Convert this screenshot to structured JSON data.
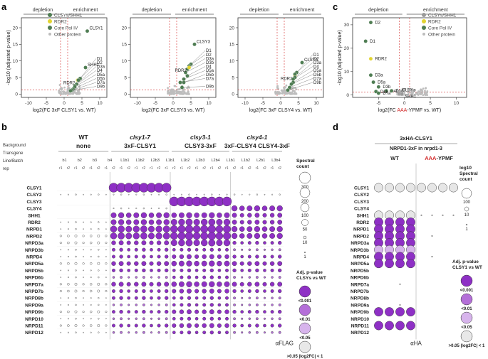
{
  "panel_labels": {
    "a": "a",
    "b": "b",
    "c": "c",
    "d": "d"
  },
  "colors": {
    "purple": "#8e30c5",
    "mid_purple": "#b46fd8",
    "light_purple": "#d7b4ec",
    "green": "#4f7d53",
    "yellow": "#e2d430",
    "grey": "#bdbdbd",
    "red": "#d22a2a"
  },
  "volcano_common": {
    "depletion": "depletion",
    "enrichment": "enrichment",
    "ylabel": "-log10 (adjusted p-value)"
  },
  "legend_a": [
    "CLSYs/SHH1",
    "RDR2",
    "Core Pol IV",
    "Other protein"
  ],
  "legend_c": [
    "CLSYs/SHH1",
    "RDR2",
    "Core Pol IV",
    "Other protein"
  ],
  "chart_data": [
    {
      "type": "scatter",
      "title": "",
      "xlabel": "log2(FC 3xF CLSY1 vs. WT)",
      "xlim": [
        -12,
        12
      ],
      "ylim": [
        -1,
        23
      ],
      "xticks": [
        "-10",
        "-5",
        "0",
        "5",
        "10"
      ],
      "yticks": [
        "0",
        "5",
        "10",
        "15",
        "20"
      ],
      "points": [
        {
          "label": "CLSY1",
          "x": 6.5,
          "y": 19.0,
          "cls": "clsy"
        },
        {
          "label": "SHH1",
          "x": 6.0,
          "y": 8.0,
          "cls": "clsy"
        },
        {
          "label": "RDR2",
          "x": 3.8,
          "y": 4.2,
          "cls": "rdr2"
        },
        {
          "label": "D1",
          "x": 4.5,
          "y": 4.7,
          "cls": "pol"
        },
        {
          "label": "D2",
          "x": 4.0,
          "y": 4.2,
          "cls": "pol"
        },
        {
          "label": "D3a",
          "x": 3.5,
          "y": 3.0,
          "cls": "pol"
        },
        {
          "label": "D4",
          "x": 3.0,
          "y": 2.5,
          "cls": "pol"
        },
        {
          "label": "D5a",
          "x": 3.0,
          "y": 2.2,
          "cls": "pol"
        },
        {
          "label": "D5b",
          "x": 2.5,
          "y": 1.5,
          "cls": "pol"
        },
        {
          "label": "D7a",
          "x": 2.2,
          "y": 1.2,
          "cls": "pol"
        },
        {
          "label": "D9b",
          "x": 1.8,
          "y": 1.0,
          "cls": "pol"
        }
      ]
    },
    {
      "type": "scatter",
      "title": "",
      "xlabel": "log2(FC 3xF CLSY3 vs. WT)",
      "xlim": [
        -12,
        12
      ],
      "ylim": [
        -1,
        23
      ],
      "xticks": [
        "-10",
        "-5",
        "0",
        "5",
        "10"
      ],
      "yticks": [
        "0",
        "5",
        "10",
        "15",
        "20"
      ],
      "points": [
        {
          "label": "CLSY3",
          "x": 6.0,
          "y": 15.0,
          "cls": "clsy"
        },
        {
          "label": "D1",
          "x": 5.0,
          "y": 9.0,
          "cls": "pol"
        },
        {
          "label": "D2",
          "x": 4.5,
          "y": 8.5,
          "cls": "pol"
        },
        {
          "label": "D3a",
          "x": 4.0,
          "y": 7.5,
          "cls": "pol"
        },
        {
          "label": "D3b",
          "x": 3.5,
          "y": 6.5,
          "cls": "pol"
        },
        {
          "label": "D4",
          "x": 4.0,
          "y": 5.5,
          "cls": "pol"
        },
        {
          "label": "D5a",
          "x": 3.0,
          "y": 4.5,
          "cls": "pol"
        },
        {
          "label": "D5b",
          "x": 3.0,
          "y": 3.5,
          "cls": "pol"
        },
        {
          "label": "D7a",
          "x": 2.0,
          "y": 3.5,
          "cls": "pol"
        },
        {
          "label": "RDR2",
          "x": 4.5,
          "y": 8.0,
          "cls": "rdr2"
        },
        {
          "label": "D9b",
          "x": 2.5,
          "y": 2.0,
          "cls": "pol"
        }
      ]
    },
    {
      "type": "scatter",
      "title": "",
      "xlabel": "log2(FC 3xF CLSY4 vs. WT)",
      "xlim": [
        -12,
        12
      ],
      "ylim": [
        -1,
        23
      ],
      "xticks": [
        "-10",
        "-5",
        "0",
        "5",
        "10"
      ],
      "yticks": [
        "0",
        "5",
        "10",
        "15",
        "20"
      ],
      "points": [
        {
          "label": "CLSY4",
          "x": 6.0,
          "y": 9.5,
          "cls": "clsy"
        },
        {
          "label": "RDR2",
          "x": 4.0,
          "y": 5.5,
          "cls": "rdr2"
        },
        {
          "label": "D1",
          "x": 4.5,
          "y": 6.5,
          "cls": "pol"
        },
        {
          "label": "D2",
          "x": 4.0,
          "y": 6.0,
          "cls": "pol"
        },
        {
          "label": "D3a",
          "x": 4.0,
          "y": 5.0,
          "cls": "pol"
        },
        {
          "label": "D4",
          "x": 3.5,
          "y": 4.5,
          "cls": "pol"
        },
        {
          "label": "D5a",
          "x": 3.5,
          "y": 3.5,
          "cls": "pol"
        },
        {
          "label": "D5b",
          "x": 3.0,
          "y": 3.0,
          "cls": "pol"
        },
        {
          "label": "D7a",
          "x": 2.5,
          "y": 2.0,
          "cls": "pol"
        },
        {
          "label": "D9b",
          "x": 2.0,
          "y": 1.2,
          "cls": "pol"
        }
      ]
    },
    {
      "type": "scatter",
      "title": "",
      "xlabel": "log2(FC AAA-YPMF vs. WT)",
      "xlim": [
        -10,
        12
      ],
      "ylim": [
        -1,
        33
      ],
      "xticks": [
        "-5",
        "0",
        "5",
        "10"
      ],
      "yticks": [
        "0",
        "10",
        "20",
        "30"
      ],
      "points": [
        {
          "label": "D2",
          "x": -6.5,
          "y": 31.0,
          "cls": "pol"
        },
        {
          "label": "D1",
          "x": -7.5,
          "y": 23.0,
          "cls": "pol"
        },
        {
          "label": "RDR2",
          "x": -6.5,
          "y": 15.5,
          "cls": "rdr2"
        },
        {
          "label": "D3a",
          "x": -6.5,
          "y": 8.5,
          "cls": "pol"
        },
        {
          "label": "D5a",
          "x": -6.0,
          "y": 5.5,
          "cls": "pol"
        },
        {
          "label": "D3b",
          "x": -5.0,
          "y": 3.5,
          "cls": "pol"
        },
        {
          "label": "D4",
          "x": -3.5,
          "y": 1.8,
          "cls": "pol"
        },
        {
          "label": "D10",
          "x": -2.5,
          "y": 1.8,
          "cls": "pol"
        },
        {
          "label": "D11",
          "x": -5.5,
          "y": 1.5,
          "cls": "pol"
        },
        {
          "label": "D7a",
          "x": -5.0,
          "y": 0.8,
          "cls": "pol"
        },
        {
          "label": "CLSYs",
          "x": -1.0,
          "y": 0.6,
          "cls": "clsy"
        },
        {
          "label": "SHH1",
          "x": -0.5,
          "y": 0.4,
          "cls": "clsy"
        }
      ]
    }
  ],
  "volcano_extra_labels": {
    "a1": [
      "CLSY1",
      "SHH1",
      "D1",
      "D2",
      "D3a",
      "D4",
      "D5a",
      "D5b",
      "D7a",
      "D9b",
      "RDR2"
    ],
    "a2": [
      "CLSY3",
      "D1",
      "D2",
      "D3a",
      "D3b",
      "D4",
      "D5a",
      "D5b",
      "D7a",
      "RDR2",
      "D9b"
    ],
    "a3": [
      "CLSY4",
      "RDR2",
      "D1",
      "D2",
      "D3a",
      "D4",
      "D5a",
      "D5b",
      "D7a",
      "D9b"
    ],
    "c": [
      "D2",
      "D1",
      "RDR2",
      "D3a",
      "D5a",
      "D3b",
      "D11",
      "D7a/D9b",
      "D4 D10",
      "CLSYs",
      "SHH1"
    ]
  },
  "panel_b": {
    "row_headers": [
      "Background",
      "Transgene",
      "Line/Batch",
      "rep"
    ],
    "groups": [
      {
        "bg": "WT",
        "tg": "none"
      },
      {
        "bg": "clsy1-7",
        "tg": "3xF-CLSY1"
      },
      {
        "bg": "clsy3-1",
        "tg": "CLSY3-3xF"
      },
      {
        "bg": "clsy4-1",
        "tg": "3xF-CLSY4   CLSY4-3xF"
      }
    ],
    "batches": [
      "b1",
      "b2",
      "b3",
      "b4",
      "L1b1",
      "L1b2",
      "L2b3",
      "L1b1",
      "L1b2",
      "L2b3",
      "L2b4",
      "L1b1",
      "L1b2",
      "L2b1",
      "L3b4"
    ],
    "proteins": [
      "CLSY1",
      "CLSY2",
      "CLSY3",
      "CLSY4",
      "SHH1",
      "RDR2",
      "NRPD1",
      "NRPD2",
      "NRPD3a",
      "NRPD3b",
      "NRPD4",
      "NRPD5a",
      "NRPD5b",
      "NRPD6b",
      "NRPD7a",
      "NRPD7b",
      "NRPD8b",
      "NRPD9a",
      "NRPD9b",
      "NRPD10",
      "NRPD11",
      "NRPD12"
    ],
    "footer": "αFLAG",
    "legend_title": "Spectral count",
    "legend_values": [
      "300",
      "200",
      "100",
      "50",
      "10",
      "1"
    ],
    "adj_title": "Adj. p-value CLSYs vs WT",
    "adj_values": [
      "<0.001",
      "<0.01",
      "<0.05",
      ">0.05 |log2FC| < 1"
    ]
  },
  "panel_d": {
    "title": "3xHA-CLSY1",
    "subtitle": "NRPD1-3xF in nrpd1-3",
    "col_wt": "WT",
    "col_mut_red": "AAA",
    "col_mut_rest": "-YPMF",
    "proteins": [
      "CLSY1",
      "CLSY2",
      "CLSY3",
      "CLSY4",
      "SHH1",
      "RDR2",
      "NRPD1",
      "NRPD2",
      "NRPD3a",
      "NRPD3b",
      "NRPD4",
      "NRPD5a",
      "NRPD5b",
      "NRPD6b",
      "NRPD7a",
      "NRPD7b",
      "NRPD8b",
      "NRPD9a",
      "NRPD9b",
      "NRPD10",
      "NRPD11",
      "NRPD12"
    ],
    "footer": "αHA",
    "legend_title": "log10 Spectral count",
    "legend_values": [
      "100",
      "10",
      "1"
    ],
    "adj_title": "Adj. p-value CLSY1 vs WT",
    "adj_values": [
      "<0.001",
      "<0.01",
      "<0.05",
      ">0.05 |log2FC| < 1"
    ]
  }
}
